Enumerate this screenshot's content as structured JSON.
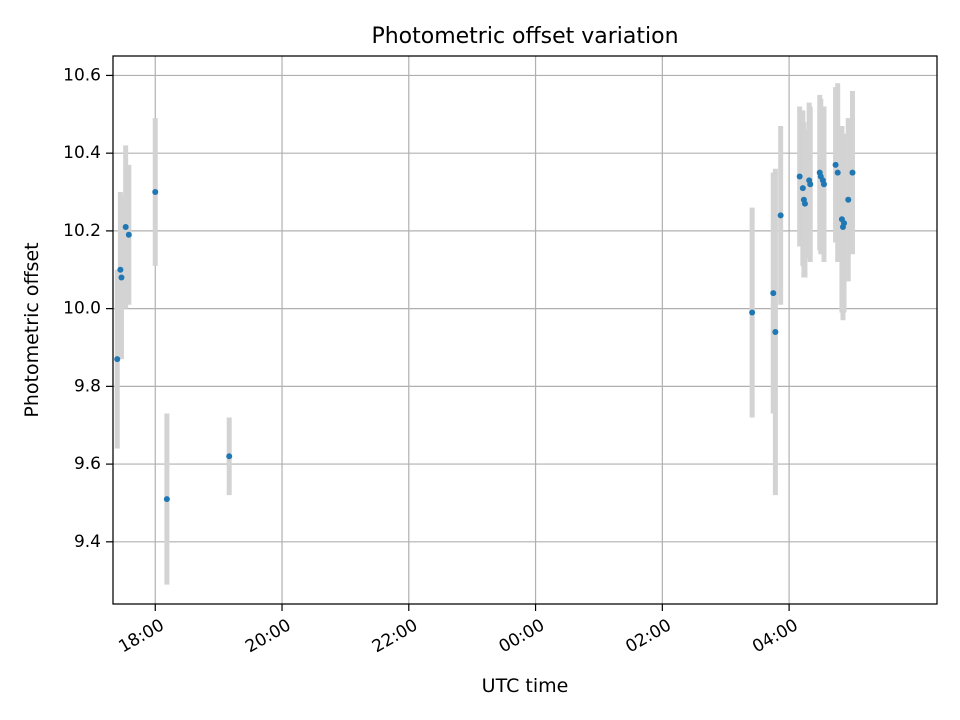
{
  "chart_data": {
    "type": "scatter",
    "title": "Photometric offset variation",
    "xlabel": "UTC time",
    "ylabel": "Photometric offset",
    "x_is_time": true,
    "xlim": [
      "17:20",
      "06:20"
    ],
    "ylim": [
      9.24,
      10.65
    ],
    "xticks": [
      "18:00",
      "20:00",
      "22:00",
      "00:00",
      "02:00",
      "04:00"
    ],
    "yticks": [
      9.4,
      9.6,
      9.8,
      10.0,
      10.2,
      10.4,
      10.6
    ],
    "grid": true,
    "colors": {
      "point": "#1f77b4",
      "errorbar": "#d3d3d3",
      "grid": "#b0b0b0"
    },
    "series": [
      {
        "points": [
          {
            "x": "17:24",
            "y": 9.87,
            "err": 0.23
          },
          {
            "x": "17:27",
            "y": 10.1,
            "err": 0.2
          },
          {
            "x": "17:28",
            "y": 10.08,
            "err": 0.21
          },
          {
            "x": "17:32",
            "y": 10.21,
            "err": 0.21
          },
          {
            "x": "17:35",
            "y": 10.19,
            "err": 0.18
          },
          {
            "x": "18:00",
            "y": 10.3,
            "err": 0.19
          },
          {
            "x": "18:11",
            "y": 9.51,
            "err": 0.22
          },
          {
            "x": "19:10",
            "y": 9.62,
            "err": 0.1
          },
          {
            "x": "03:25",
            "y": 9.99,
            "err": 0.27
          },
          {
            "x": "03:45",
            "y": 10.04,
            "err": 0.31
          },
          {
            "x": "03:47",
            "y": 9.94,
            "err": 0.42
          },
          {
            "x": "03:52",
            "y": 10.24,
            "err": 0.23
          },
          {
            "x": "04:10",
            "y": 10.34,
            "err": 0.18
          },
          {
            "x": "04:13",
            "y": 10.31,
            "err": 0.2
          },
          {
            "x": "04:14",
            "y": 10.28,
            "err": 0.2
          },
          {
            "x": "04:15",
            "y": 10.27,
            "err": 0.19
          },
          {
            "x": "04:19",
            "y": 10.33,
            "err": 0.2
          },
          {
            "x": "04:20",
            "y": 10.32,
            "err": 0.2
          },
          {
            "x": "04:29",
            "y": 10.35,
            "err": 0.2
          },
          {
            "x": "04:30",
            "y": 10.34,
            "err": 0.2
          },
          {
            "x": "04:32",
            "y": 10.33,
            "err": 0.19
          },
          {
            "x": "04:33",
            "y": 10.32,
            "err": 0.2
          },
          {
            "x": "04:44",
            "y": 10.37,
            "err": 0.2
          },
          {
            "x": "04:46",
            "y": 10.35,
            "err": 0.23
          },
          {
            "x": "04:50",
            "y": 10.23,
            "err": 0.24
          },
          {
            "x": "04:51",
            "y": 10.21,
            "err": 0.24
          },
          {
            "x": "04:52",
            "y": 10.22,
            "err": 0.23
          },
          {
            "x": "04:56",
            "y": 10.28,
            "err": 0.21
          },
          {
            "x": "05:00",
            "y": 10.35,
            "err": 0.21
          }
        ]
      }
    ]
  }
}
